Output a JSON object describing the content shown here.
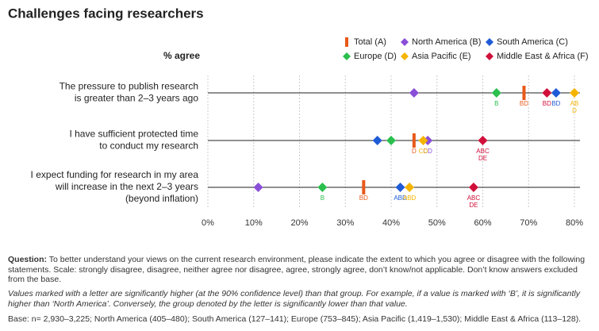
{
  "chart_data": {
    "type": "dot",
    "title": "Challenges facing researchers",
    "y_header": "% agree",
    "categories": [
      [
        "The pressure to publish research",
        "is greater than 2–3 years ago"
      ],
      [
        "I have sufficient protected time",
        "to conduct my research"
      ],
      [
        "I expect funding for research in my area",
        "will increase in the next 2–3 years",
        "(beyond inflation)"
      ]
    ],
    "xlim": [
      0,
      80
    ],
    "xticks": [
      {
        "value": 0,
        "label": "0%"
      },
      {
        "value": 10,
        "label": "10%"
      },
      {
        "value": 20,
        "label": "20%"
      },
      {
        "value": 30,
        "label": "30%"
      },
      {
        "value": 40,
        "label": "40%"
      },
      {
        "value": 50,
        "label": "50%"
      },
      {
        "value": 60,
        "label": "60%"
      },
      {
        "value": 70,
        "label": "70%"
      },
      {
        "value": 80,
        "label": "80%"
      }
    ],
    "grid": true,
    "series": [
      {
        "name": "Total (A)",
        "color": "#e8591a",
        "marker": "bar",
        "values": [
          69,
          45,
          34
        ],
        "sig_labels": [
          [
            "BD"
          ],
          [
            "D"
          ],
          [
            "BD"
          ]
        ]
      },
      {
        "name": "North America (B)",
        "color": "#8a4fd8",
        "marker": "diamond",
        "values": [
          45,
          48,
          11
        ],
        "sig_labels": [
          null,
          [
            "CD"
          ],
          null
        ]
      },
      {
        "name": "South America (C)",
        "color": "#1f5bd6",
        "marker": "diamond",
        "values": [
          76,
          37,
          42
        ],
        "sig_labels": [
          [
            "BD"
          ],
          null,
          [
            "ABD"
          ]
        ]
      },
      {
        "name": "Europe (D)",
        "color": "#2bbf4e",
        "marker": "diamond",
        "values": [
          63,
          40,
          25
        ],
        "sig_labels": [
          [
            "B"
          ],
          null,
          [
            "B"
          ]
        ]
      },
      {
        "name": "Asia Pacific (E)",
        "color": "#f5b400",
        "marker": "diamond",
        "values": [
          80,
          47,
          44
        ],
        "sig_labels": [
          [
            "AB",
            "D"
          ],
          [
            "CD"
          ],
          [
            "ABD"
          ]
        ]
      },
      {
        "name": "Middle East & Africa (F)",
        "color": "#d0103a",
        "marker": "diamond",
        "values": [
          74,
          60,
          58
        ],
        "sig_labels": [
          [
            "BD"
          ],
          [
            "ABC",
            "DE"
          ],
          [
            "ABC",
            "DE"
          ]
        ]
      }
    ],
    "notes": {
      "question_label": "Question:",
      "question": "To better understand your views on the current research environment, please indicate the extent to which you agree or disagree with the following statements. Scale: strongly disagree, disagree, neither agree nor disagree, agree, strongly agree, don’t know/not applicable. Don’t know answers excluded from the base.",
      "significance": "Values marked with a letter are significantly higher (at the 90% confidence level) than that group. For example, if a value is marked with ‘B’, it is significantly higher than ‘North America’. Conversely, the group denoted by the letter is significantly lower than that value.",
      "base": "Base: n= 2,930–3,225; North America (405–480); South America (127–141); Europe (753–845); Asia Pacific (1,419–1,530); Middle East & Africa (113–128)."
    }
  }
}
